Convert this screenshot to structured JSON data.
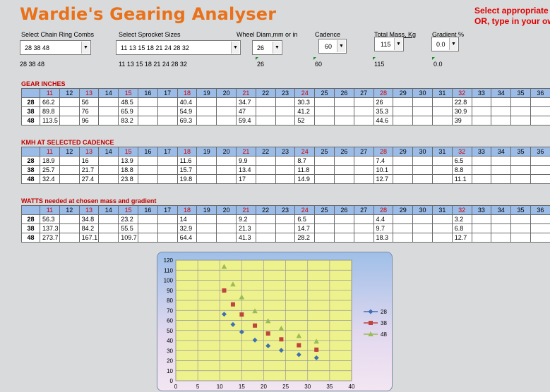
{
  "app": {
    "title": "Wardie's Gearing Analyser",
    "instructions": [
      "Select appropriate",
      "OR,  type in your ow"
    ]
  },
  "controls": {
    "chainrings": {
      "label": "Select Chain Ring Combs",
      "value": "28 38 48",
      "echo": "28 38 48"
    },
    "sprockets": {
      "label": "Select Sprocket Sizes",
      "value": "11 13 15 18 21 24 28 32",
      "echo": "11 13 15 18 21 24 28 32"
    },
    "wheel": {
      "label": "Wheel Diam,mm or in",
      "value": "26",
      "echo": "26"
    },
    "cadence": {
      "label": "Cadence",
      "value": "60",
      "echo": "60"
    },
    "mass": {
      "label": "Total Mass, Kg",
      "value": "115",
      "echo": "115"
    },
    "gradient": {
      "label": "Gradient %",
      "value": "0.0",
      "echo": "0.0"
    }
  },
  "columns": [
    "11",
    "12",
    "13",
    "14",
    "15",
    "16",
    "17",
    "18",
    "19",
    "20",
    "21",
    "22",
    "23",
    "24",
    "25",
    "26",
    "27",
    "28",
    "29",
    "30",
    "31",
    "32",
    "33",
    "34",
    "35",
    "36"
  ],
  "selected_columns": [
    "11",
    "13",
    "15",
    "18",
    "21",
    "24",
    "28",
    "32"
  ],
  "tables": [
    {
      "title": "GEAR INCHES",
      "rows": [
        {
          "ring": "28",
          "cells": [
            "66.2",
            "",
            "56",
            "",
            "48.5",
            "",
            "",
            "40.4",
            "",
            "",
            "34.7",
            "",
            "",
            "30.3",
            "",
            "",
            "",
            "26",
            "",
            "",
            "",
            "22.8",
            "",
            "",
            "",
            ""
          ]
        },
        {
          "ring": "38",
          "cells": [
            "89.8",
            "",
            "76",
            "",
            "65.9",
            "",
            "",
            "54.9",
            "",
            "",
            "47",
            "",
            "",
            "41.2",
            "",
            "",
            "",
            "35.3",
            "",
            "",
            "",
            "30.9",
            "",
            "",
            "",
            ""
          ]
        },
        {
          "ring": "48",
          "cells": [
            "113.5",
            "",
            "96",
            "",
            "83.2",
            "",
            "",
            "69.3",
            "",
            "",
            "59.4",
            "",
            "",
            "52",
            "",
            "",
            "",
            "44.6",
            "",
            "",
            "",
            "39",
            "",
            "",
            "",
            ""
          ]
        }
      ]
    },
    {
      "title": "KMH AT SELECTED CADENCE",
      "rows": [
        {
          "ring": "28",
          "cells": [
            "18.9",
            "",
            "16",
            "",
            "13.9",
            "",
            "",
            "11.6",
            "",
            "",
            "9.9",
            "",
            "",
            "8.7",
            "",
            "",
            "",
            "7.4",
            "",
            "",
            "",
            "6.5",
            "",
            "",
            "",
            ""
          ]
        },
        {
          "ring": "38",
          "cells": [
            "25.7",
            "",
            "21.7",
            "",
            "18.8",
            "",
            "",
            "15.7",
            "",
            "",
            "13.4",
            "",
            "",
            "11.8",
            "",
            "",
            "",
            "10.1",
            "",
            "",
            "",
            "8.8",
            "",
            "",
            "",
            ""
          ]
        },
        {
          "ring": "48",
          "cells": [
            "32.4",
            "",
            "27.4",
            "",
            "23.8",
            "",
            "",
            "19.8",
            "",
            "",
            "17",
            "",
            "",
            "14.9",
            "",
            "",
            "",
            "12.7",
            "",
            "",
            "",
            "11.1",
            "",
            "",
            "",
            ""
          ]
        }
      ]
    },
    {
      "title": "WATTS needed at chosen mass and gradient",
      "rows": [
        {
          "ring": "28",
          "cells": [
            "56.3",
            "",
            "34.8",
            "",
            "23.2",
            "",
            "",
            "14",
            "",
            "",
            "9.2",
            "",
            "",
            "6.5",
            "",
            "",
            "",
            "4.4",
            "",
            "",
            "",
            "3.2",
            "",
            "",
            "",
            ""
          ]
        },
        {
          "ring": "38",
          "cells": [
            "137.3",
            "",
            "84.2",
            "",
            "55.5",
            "",
            "",
            "32.9",
            "",
            "",
            "21.3",
            "",
            "",
            "14.7",
            "",
            "",
            "",
            "9.7",
            "",
            "",
            "",
            "6.8",
            "",
            "",
            "",
            ""
          ]
        },
        {
          "ring": "48",
          "cells": [
            "273.7",
            "",
            "167.1",
            "",
            "109.7",
            "",
            "",
            "64.4",
            "",
            "",
            "41.3",
            "",
            "",
            "28.2",
            "",
            "",
            "",
            "18.3",
            "",
            "",
            "",
            "12.7",
            "",
            "",
            "",
            ""
          ]
        }
      ]
    }
  ],
  "chart_data": {
    "type": "scatter",
    "xlim": [
      0,
      40
    ],
    "ylim": [
      0,
      120
    ],
    "xticks": [
      0,
      5,
      10,
      15,
      20,
      25,
      30,
      35,
      40
    ],
    "yticks": [
      0,
      10,
      20,
      30,
      40,
      50,
      60,
      70,
      80,
      90,
      100,
      110,
      120
    ],
    "grid": true,
    "legend_position": "right",
    "plot_background": "#eef28c",
    "series": [
      {
        "name": "28",
        "color": "#3f6fb3",
        "marker": "diamond",
        "x": [
          11,
          13,
          15,
          18,
          21,
          24,
          28,
          32
        ],
        "y": [
          66.2,
          56,
          48.5,
          40.4,
          34.7,
          30.3,
          26,
          22.8
        ]
      },
      {
        "name": "38",
        "color": "#c0433f",
        "marker": "square",
        "x": [
          11,
          13,
          15,
          18,
          21,
          24,
          28,
          32
        ],
        "y": [
          89.8,
          76,
          65.9,
          54.9,
          47,
          41.2,
          35.3,
          30.9
        ]
      },
      {
        "name": "48",
        "color": "#9bbb59",
        "marker": "triangle",
        "x": [
          11,
          13,
          15,
          18,
          21,
          24,
          28,
          32
        ],
        "y": [
          113.5,
          96,
          83.2,
          69.3,
          59.4,
          52,
          44.6,
          39
        ]
      }
    ]
  }
}
